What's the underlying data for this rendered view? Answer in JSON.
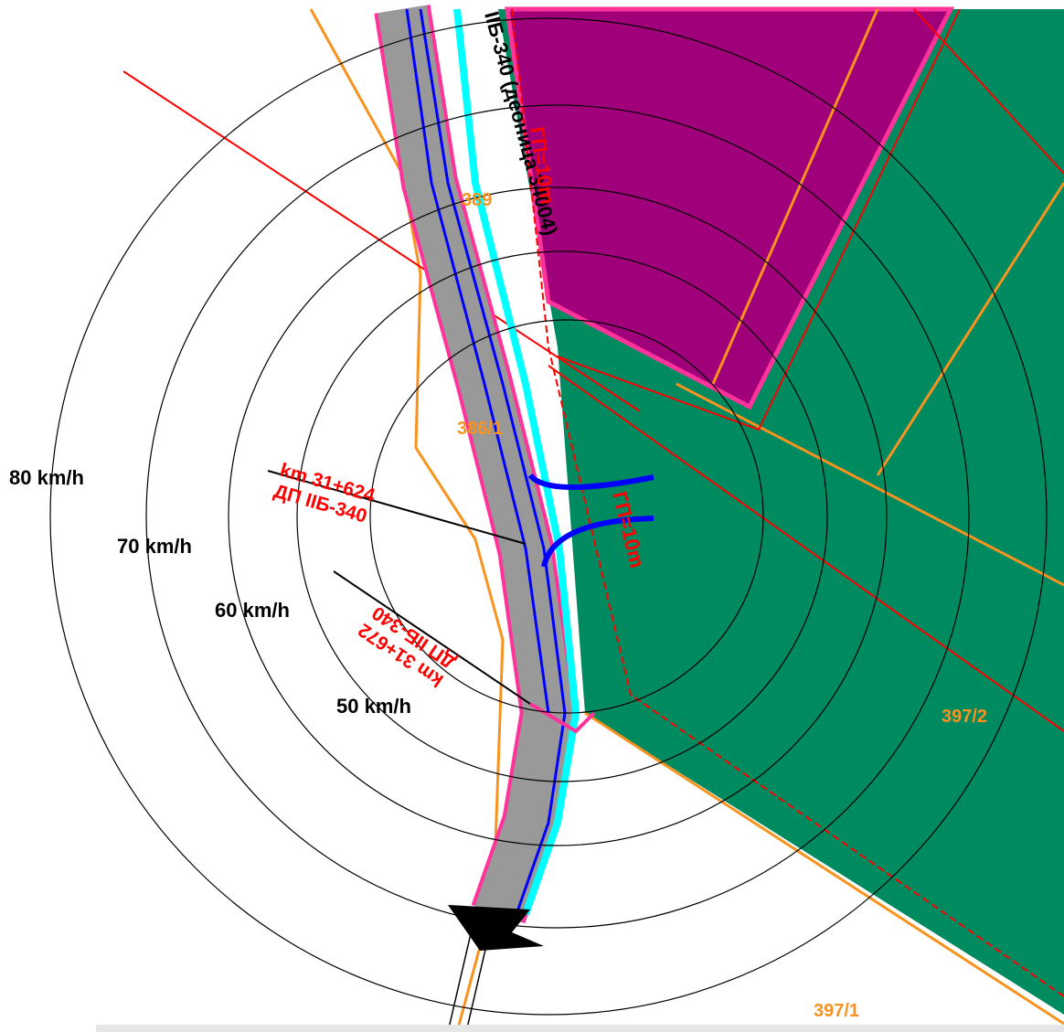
{
  "speed_zones": [
    {
      "label": "80 km/h"
    },
    {
      "label": "70 km/h"
    },
    {
      "label": "60 km/h"
    },
    {
      "label": "50 km/h"
    }
  ],
  "stations": [
    {
      "km": "km 31+624",
      "name": "ДП IIБ-340"
    },
    {
      "km": "km 31+672",
      "name": "ДП IIБ-340"
    }
  ],
  "road_label": "IIБ-340 (деоница 34004)",
  "buffer_labels": [
    "ГП=10m",
    "ГП=10m"
  ],
  "parcels": [
    "389",
    "386/1",
    "397/2",
    "397/1"
  ]
}
